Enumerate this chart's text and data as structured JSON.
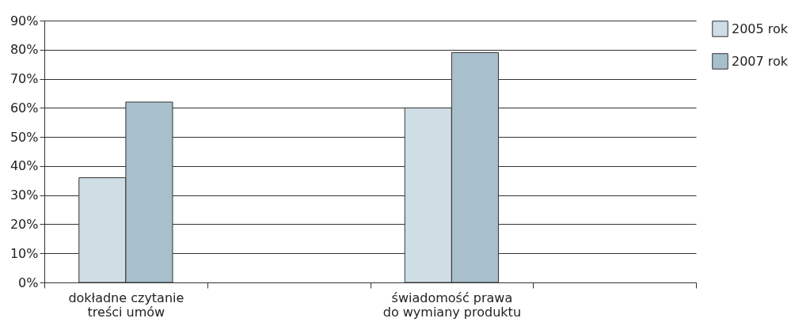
{
  "chart_data": {
    "type": "bar",
    "categories": [
      "dokładne czytanie treści umów",
      null,
      "świadomość prawa do wymiany produktu",
      null
    ],
    "series": [
      {
        "name": "2005 rok",
        "color": "#cfdde4",
        "values": [
          36,
          null,
          60,
          null
        ]
      },
      {
        "name": "2007 rok",
        "color": "#a8bfcc",
        "values": [
          62,
          null,
          79,
          null
        ]
      }
    ],
    "ylim": [
      0,
      90
    ],
    "yticks": [
      {
        "value": 0,
        "label": "0%"
      },
      {
        "value": 10,
        "label": "10%"
      },
      {
        "value": 20,
        "label": "20%"
      },
      {
        "value": 30,
        "label": "30%"
      },
      {
        "value": 40,
        "label": "40%"
      },
      {
        "value": 50,
        "label": "50%"
      },
      {
        "value": 60,
        "label": "60%"
      },
      {
        "value": 70,
        "label": "70%"
      },
      {
        "value": 80,
        "label": "80%"
      },
      {
        "value": 90,
        "label": "90%"
      }
    ],
    "grid": "y",
    "legend": "right"
  }
}
